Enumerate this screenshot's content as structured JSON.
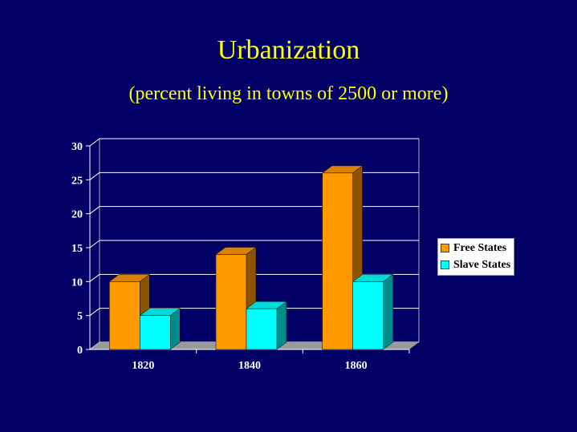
{
  "slide": {
    "title": "Urbanization",
    "subtitle": "(percent living in towns of 2500 or more)"
  },
  "chart_data": {
    "type": "bar",
    "categories": [
      "1820",
      "1840",
      "1860"
    ],
    "series": [
      {
        "name": "Free States",
        "values": [
          10,
          14,
          26
        ],
        "color": "#ff9900"
      },
      {
        "name": "Slave States",
        "values": [
          5,
          6,
          10
        ],
        "color": "#00ffff"
      }
    ],
    "yticks": [
      "0",
      "5",
      "10",
      "15",
      "20",
      "25",
      "30"
    ],
    "ylim": [
      0,
      30
    ],
    "grid": true,
    "legend_position": "right",
    "three_d": true
  },
  "colors": {
    "background": "#000066",
    "title": "#ffff00",
    "plot_area": "#000066",
    "gridline": "#ffffff",
    "floor": "#999999"
  }
}
